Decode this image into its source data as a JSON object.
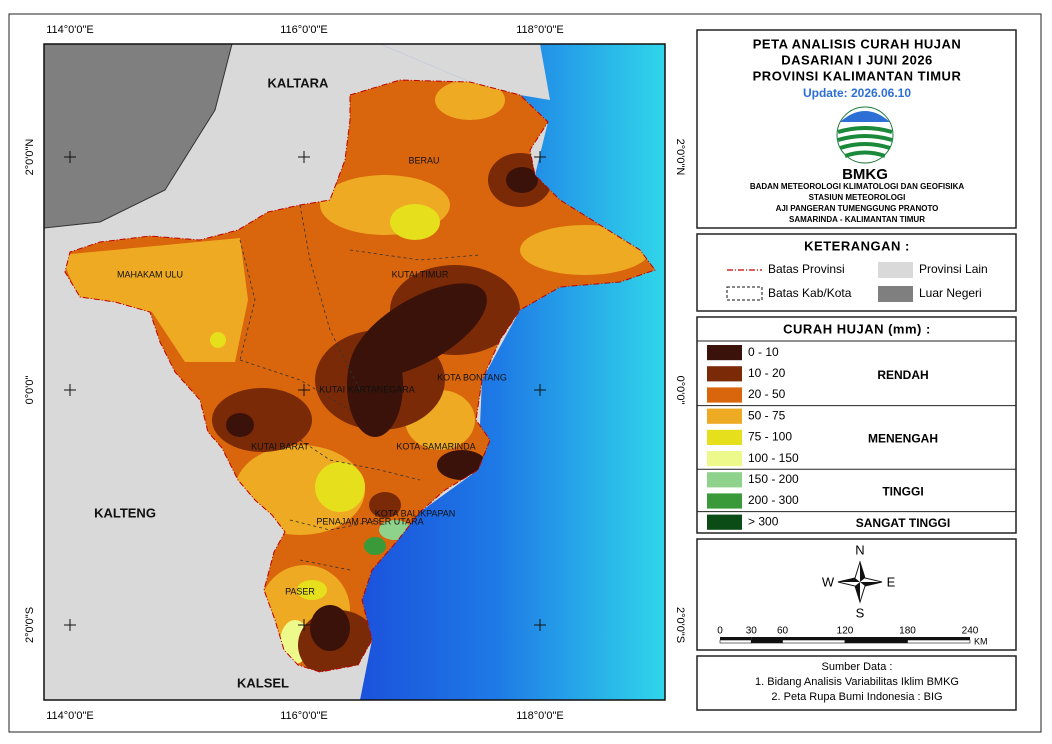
{
  "map": {
    "coord_labels": {
      "top": [
        "114°0'0\"E",
        "116°0'0\"E",
        "118°0'0\"E"
      ],
      "bottom": [
        "114°0'0\"E",
        "116°0'0\"E",
        "118°0'0\"E"
      ],
      "left": [
        "2°0'0\"N",
        "0°0'0\"",
        "2°0'0\"S"
      ],
      "right": [
        "2°0'0\"N",
        "0°0'0\"",
        "2°0'0\"S"
      ]
    },
    "regions": [
      "KALTARA",
      "KALTENG",
      "KALSEL",
      "BERAU",
      "MAHAKAM ULU",
      "KUTAI TIMUR",
      "KUTAI KARTANEGARA",
      "KOTA BONTANG",
      "KUTAI BARAT",
      "KOTA SAMARINDA",
      "KOTA BALIKPAPAN",
      "PENAJAM PASER UTARA",
      "PASER"
    ]
  },
  "title": {
    "lines": [
      "PETA ANALISIS CURAH HUJAN",
      "DASARIAN I JUNI 2026",
      "PROVINSI KALIMANTAN TIMUR"
    ],
    "update": "Update: 2026.06.10",
    "logo": "BMKG",
    "agency": [
      "BADAN METEOROLOGI KLIMATOLOGI DAN GEOFISIKA",
      "STASIUN METEOROLOGI",
      "AJI PANGERAN TUMENGGUNG PRANOTO",
      "SAMARINDA - KALIMANTAN TIMUR"
    ]
  },
  "keterangan": {
    "title": "KETERANGAN :",
    "items": [
      "Batas Provinsi",
      "Batas Kab/Kota",
      "Provinsi Lain",
      "Luar Negeri"
    ]
  },
  "rainfall_legend": {
    "title": "CURAH HUJAN (mm) :",
    "classes": [
      {
        "label": "0 - 10",
        "color": "#3a1209"
      },
      {
        "label": "10 - 20",
        "color": "#7a2a06"
      },
      {
        "label": "20 - 50",
        "color": "#d9650c"
      },
      {
        "label": "50 - 75",
        "color": "#eeaa22"
      },
      {
        "label": "75 - 100",
        "color": "#e6df1c"
      },
      {
        "label": "100 - 150",
        "color": "#eef98c"
      },
      {
        "label": "150 - 200",
        "color": "#8fd28c"
      },
      {
        "label": "200 - 300",
        "color": "#3a9a3a"
      },
      {
        "label": "> 300",
        "color": "#0b4c16"
      }
    ],
    "groups": [
      "RENDAH",
      "MENENGAH",
      "TINGGI",
      "SANGAT TINGGI"
    ]
  },
  "compass": {
    "n": "N",
    "s": "S",
    "w": "W",
    "e": "E"
  },
  "scale": {
    "ticks": [
      0,
      30,
      60,
      120,
      180,
      240
    ],
    "unit": "KM"
  },
  "source": {
    "title": "Sumber Data :",
    "lines": [
      "1. Bidang Analisis Variabilitas Iklim BMKG",
      "2. Peta Rupa Bumi Indonesia : BIG"
    ]
  }
}
